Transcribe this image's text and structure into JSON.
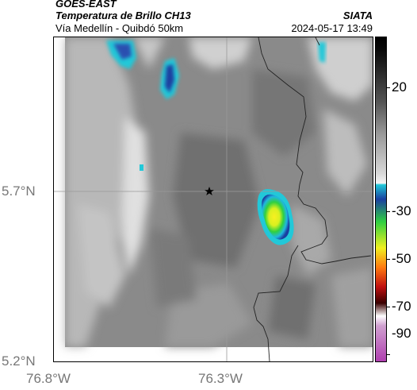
{
  "header": {
    "satellite": "GOES-EAST",
    "product": "Temperatura de Brillo CH13",
    "region": "Vía Medellín - Quibdó 50km",
    "source": "SIATA",
    "timestamp": "2024-05-17 13:49"
  },
  "map": {
    "lat_labels": [
      "5.7°N",
      "5.2°N"
    ],
    "lon_labels": [
      "76.8°W",
      "76.3°W"
    ],
    "gridlines": true,
    "marker_icon": "star-icon"
  },
  "colorbar": {
    "ticks": [
      "20",
      "-30",
      "-50",
      "-70",
      "-90"
    ],
    "colors": {
      "warm": "#d8d8d8",
      "mid": "#555555",
      "dark": "#0a0a0a",
      "cyan": "#20c8d8",
      "blue": "#1a3fa0",
      "green": "#30d040",
      "yellow": "#f0f020",
      "orange": "#ff7a10",
      "red": "#c01010",
      "magenta": "#b040b0"
    }
  }
}
